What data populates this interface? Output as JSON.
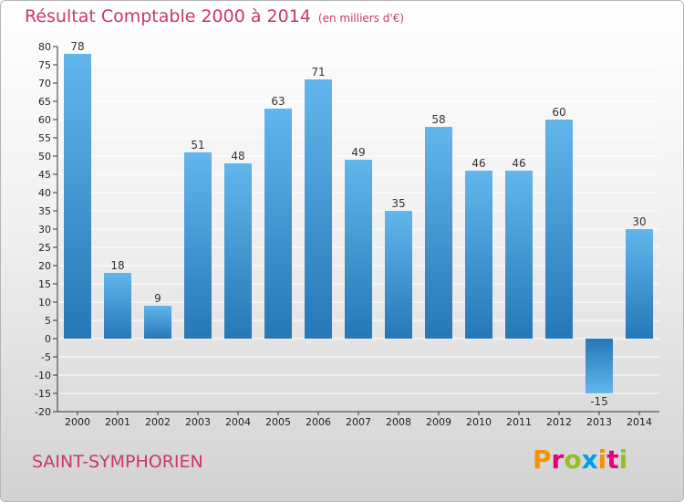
{
  "title": "Résultat Comptable 2000 à 2014",
  "subtitle": "(en milliers d'€)",
  "commune": "SAINT-SYMPHORIEN",
  "logo": {
    "letters": [
      "P",
      "r",
      "o",
      "x",
      "i",
      "t",
      "i"
    ],
    "colors": [
      "#f29400",
      "#e4007c",
      "#95c11f",
      "#009fe3",
      "#f29400",
      "#e4007c",
      "#95c11f"
    ]
  },
  "colors": {
    "title": "#c8386a",
    "bar_light": "#5fb3ea",
    "bar_dark": "#2878b8",
    "grid": "#ffffff"
  },
  "chart_data": {
    "type": "bar",
    "title": "Résultat Comptable 2000 à 2014",
    "unit": "(en milliers d'€)",
    "categories": [
      "2000",
      "2001",
      "2002",
      "2003",
      "2004",
      "2005",
      "2006",
      "2007",
      "2008",
      "2009",
      "2010",
      "2011",
      "2012",
      "2013",
      "2014"
    ],
    "values": [
      78,
      18,
      9,
      51,
      48,
      63,
      71,
      49,
      35,
      58,
      46,
      46,
      60,
      -15,
      30
    ],
    "ylim": [
      -20,
      80
    ],
    "ytick_step": 5,
    "xlabel": "",
    "ylabel": ""
  }
}
